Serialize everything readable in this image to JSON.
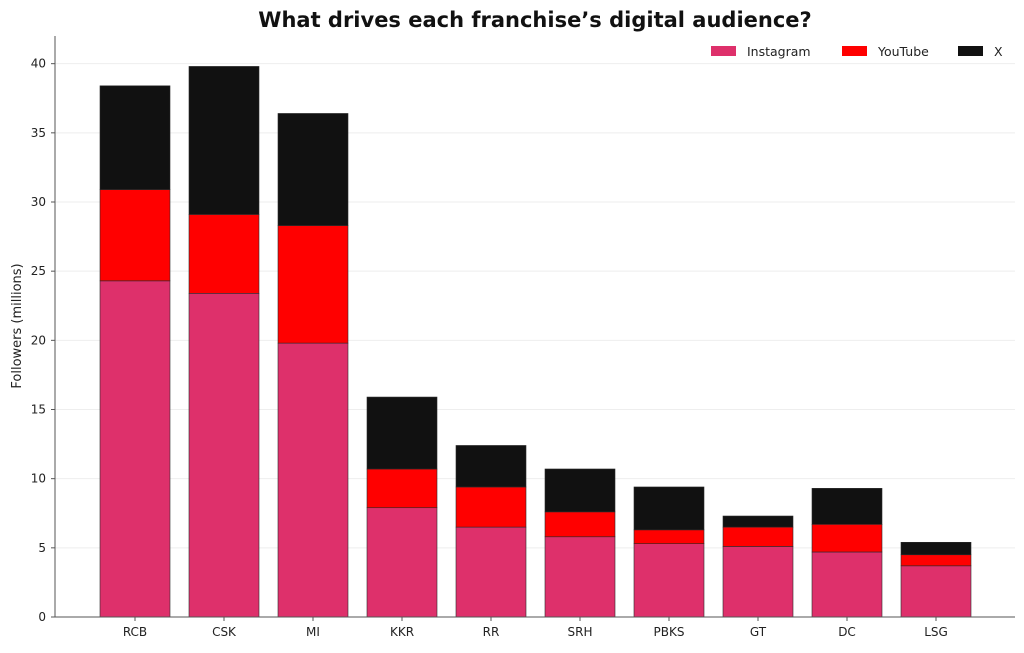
{
  "chart_data": {
    "type": "bar",
    "stacked": true,
    "title": "What drives each franchise’s digital audience?",
    "xlabel": "",
    "ylabel": "Followers (millions)",
    "ylim": [
      0,
      42
    ],
    "yticks": [
      0,
      5,
      10,
      15,
      20,
      25,
      30,
      35,
      40
    ],
    "grid": "horizontal",
    "legend_position": "top-right",
    "categories": [
      "RCB",
      "CSK",
      "MI",
      "KKR",
      "RR",
      "SRH",
      "PBKS",
      "GT",
      "DC",
      "LSG"
    ],
    "series": [
      {
        "name": "Instagram",
        "color": "#de306b",
        "values": [
          24.3,
          23.4,
          19.8,
          7.9,
          6.5,
          5.8,
          5.3,
          5.1,
          4.7,
          3.7
        ]
      },
      {
        "name": "YouTube",
        "color": "#ff0000",
        "values": [
          6.6,
          5.7,
          8.5,
          2.8,
          2.9,
          1.8,
          1.0,
          1.4,
          2.0,
          0.8
        ]
      },
      {
        "name": "X",
        "color": "#111111",
        "values": [
          7.5,
          10.7,
          8.1,
          5.2,
          3.0,
          3.1,
          3.1,
          0.8,
          2.6,
          0.9
        ]
      }
    ]
  }
}
